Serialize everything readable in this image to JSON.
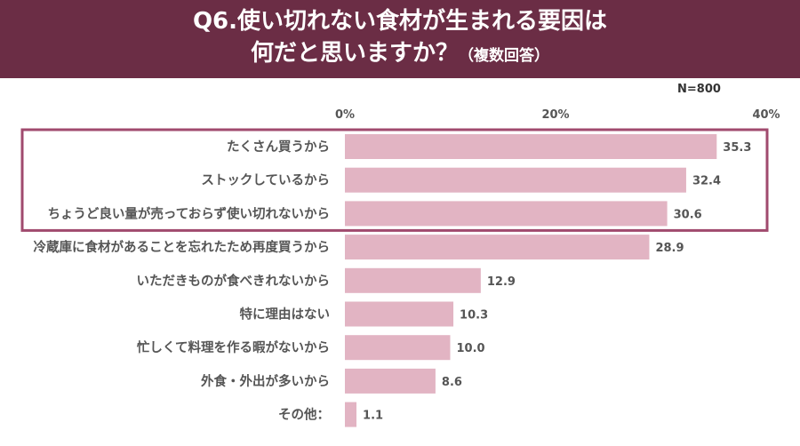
{
  "header": {
    "title_line1": "Q6.使い切れない食材が生まれる要因は",
    "title_line2_main": "何だと思いますか？",
    "title_line2_sub": "（複数回答）"
  },
  "sample_label": "N=800",
  "colors": {
    "header_bg": "#6b2d45",
    "bar": "#e2b4c3",
    "highlight_border": "#a04a6e"
  },
  "chart_data": {
    "type": "bar",
    "orientation": "horizontal",
    "unit": "%",
    "xlim": [
      0,
      40
    ],
    "x_ticks": [
      "0%",
      "20%",
      "40%"
    ],
    "categories": [
      "たくさん買うから",
      "ストックしているから",
      "ちょうど良い量が売っておらず使い切れないから",
      "冷蔵庫に食材があることを忘れたため再度買うから",
      "いただきものが食べきれないから",
      "特に理由はない",
      "忙しくて料理を作る暇がないから",
      "外食・外出が多いから",
      "その他："
    ],
    "values": [
      35.3,
      32.4,
      30.6,
      28.9,
      12.9,
      10.3,
      10.0,
      8.6,
      1.1
    ],
    "value_labels": [
      "35.3",
      "32.4",
      "30.6",
      "28.9",
      "12.9",
      "10.3",
      "10.0",
      "8.6",
      "1.1"
    ],
    "highlighted_categories": [
      0,
      1,
      2
    ]
  }
}
